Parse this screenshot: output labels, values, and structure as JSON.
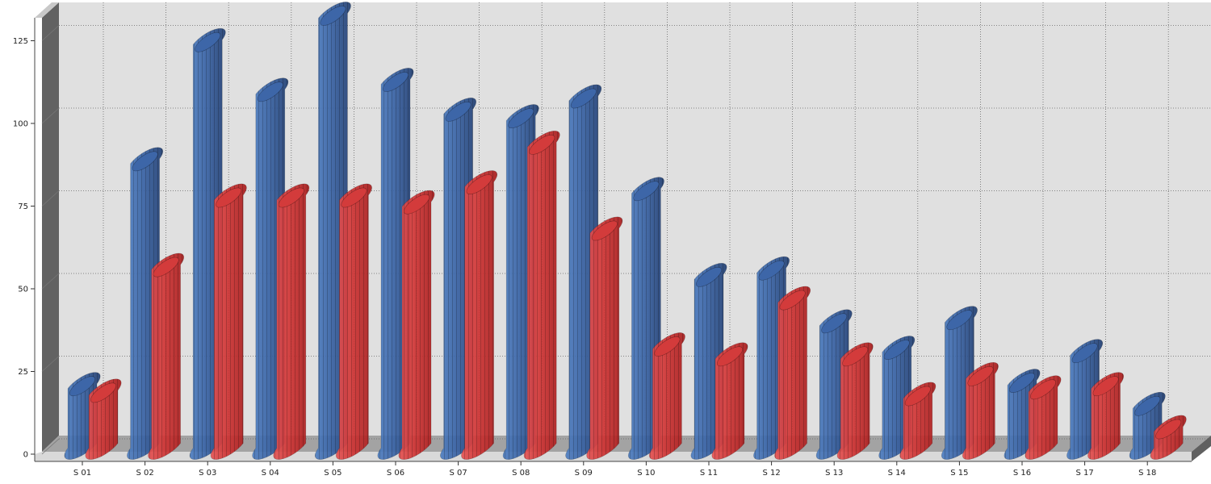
{
  "chart_data": {
    "type": "bar",
    "title": "",
    "xlabel": "",
    "ylabel": "",
    "categories": [
      "S 01",
      "S 02",
      "S 03",
      "S 04",
      "S 05",
      "S 06",
      "S 07",
      "S 08",
      "S 09",
      "S 10",
      "S 11",
      "S 12",
      "S 13",
      "S 14",
      "S 15",
      "S 16",
      "S 17",
      "S 18"
    ],
    "series": [
      {
        "color": "#3a64a6",
        "values": [
          18,
          86,
          122,
          107,
          130,
          110,
          101,
          99,
          105,
          77,
          51,
          53,
          37,
          29,
          38,
          19,
          28,
          12
        ]
      },
      {
        "color": "#d53a3a",
        "values": [
          16,
          54,
          75,
          75,
          75,
          73,
          79,
          91,
          65,
          30,
          27,
          44,
          27,
          15,
          21,
          17,
          18,
          5
        ]
      }
    ],
    "ylim": [
      0,
      130
    ],
    "yticks": [
      "0",
      "25",
      "50",
      "75",
      "100",
      "125"
    ],
    "grid": true,
    "legend": "none"
  }
}
